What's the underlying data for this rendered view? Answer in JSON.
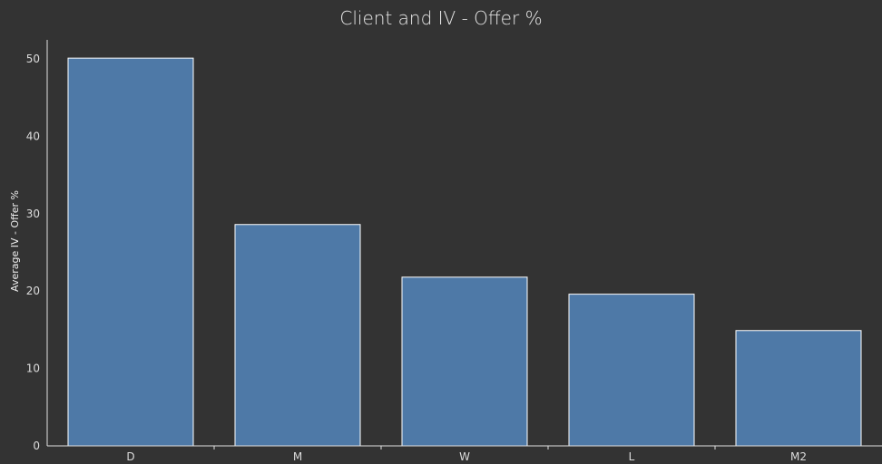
{
  "chart_data": {
    "type": "bar",
    "title": "Client and IV - Offer %",
    "xlabel": "",
    "ylabel": "Average IV - Offer %",
    "categories": [
      "D",
      "M",
      "W",
      "L",
      "M2"
    ],
    "values": [
      50.1,
      28.6,
      21.8,
      19.6,
      14.9
    ],
    "ylim": [
      0,
      50
    ],
    "yticks": [
      0,
      10,
      20,
      30,
      40,
      50
    ],
    "grid": false,
    "legend": "none",
    "bar_color": "#4e79a7"
  },
  "colors": {
    "background": "#333333",
    "bar": "#4e79a7",
    "bar_outline": "#ffffff",
    "text": "#e6e6e6"
  }
}
